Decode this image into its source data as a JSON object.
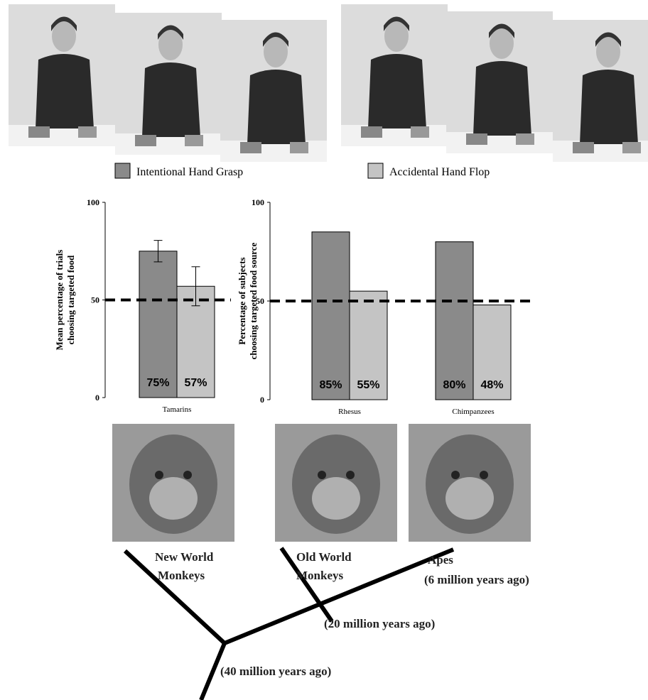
{
  "chart_data": [
    {
      "type": "bar",
      "ylabel": [
        "Mean percentage of trials",
        "choosing targeted food"
      ],
      "categories": [
        "Tamarins"
      ],
      "series": [
        {
          "name": "Intentional Hand Grasp",
          "color": "#8a8a8a",
          "values": [
            75
          ],
          "errors": [
            5.5
          ],
          "value_labels": [
            "75%"
          ]
        },
        {
          "name": "Accidental Hand Flop",
          "color": "#c4c4c4",
          "values": [
            57
          ],
          "errors": [
            10
          ],
          "value_labels": [
            "57%"
          ]
        }
      ],
      "ylim": [
        0,
        100
      ],
      "yticks": [
        0,
        50,
        100
      ],
      "hline": 50
    },
    {
      "type": "bar",
      "ylabel": [
        "Percentage of subjects",
        "choosing targeted food source"
      ],
      "categories": [
        "Rhesus",
        "Chimpanzees"
      ],
      "series": [
        {
          "color": "#8a8a8a",
          "values": [
            85,
            80
          ],
          "value_labels": [
            "85%",
            "80%"
          ]
        },
        {
          "color": "#c4c4c4",
          "values": [
            55,
            48
          ],
          "value_labels": [
            "55%",
            "48%"
          ]
        }
      ],
      "ylim": [
        0,
        100
      ],
      "yticks": [
        0,
        50,
        100
      ],
      "hline": 50
    }
  ],
  "tree": {
    "labels": [
      [
        "New World",
        "Monkeys"
      ],
      [
        "Old World",
        "Monkeys"
      ],
      [
        "Apes"
      ],
      [
        "(6 million years ago)"
      ],
      [
        "(20 million years ago)"
      ],
      [
        "(40 million years ago)"
      ]
    ]
  }
}
